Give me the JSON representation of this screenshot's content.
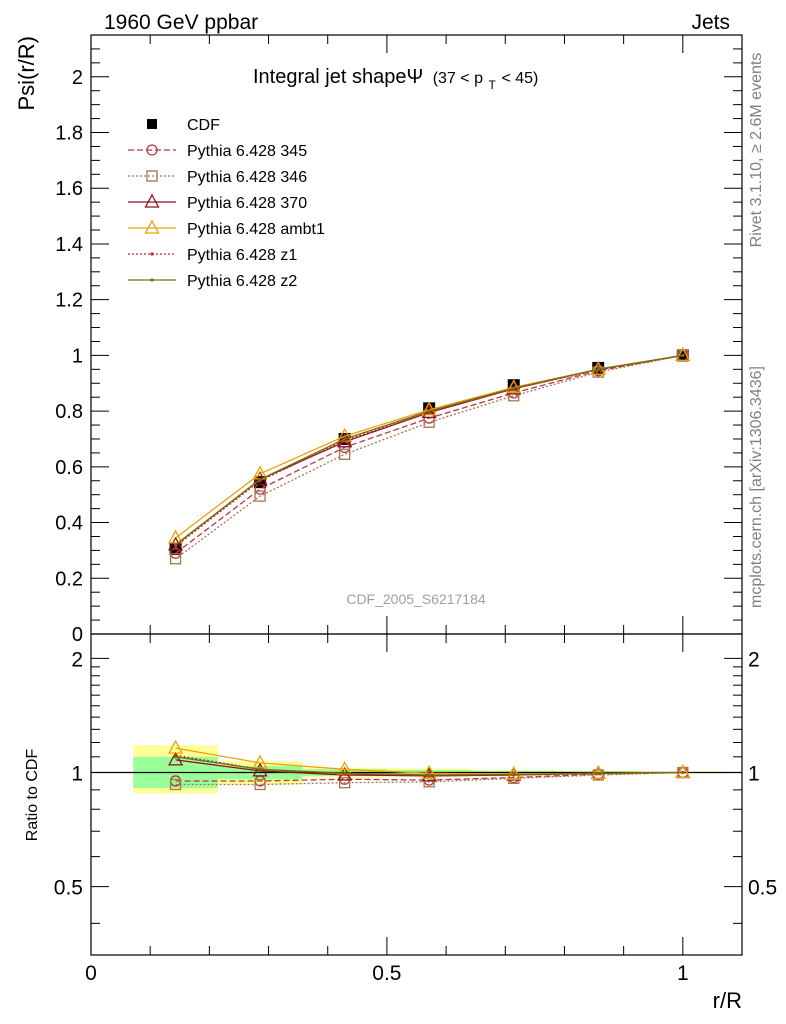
{
  "header": {
    "left": "1960 GeV ppbar",
    "right": "Jets"
  },
  "side_labels": {
    "rivet": "Rivet 3.1.10, ≥ 2.6M events",
    "mcplots": "mcplots.cern.ch [arXiv:1306.3436]"
  },
  "analysis_id": "CDF_2005_S6217184",
  "chart_data": [
    {
      "type": "line",
      "title": "Integral jet shapeΨ",
      "subtitle": "(37 < p_T < 45)",
      "subtitle_parts": {
        "open": "(37 < p",
        "sub": "T",
        "close": " < 45)"
      },
      "xlabel": "r/R",
      "ylabel": "Psi(r/R)",
      "xlim": [
        0,
        1.1
      ],
      "ylim": [
        0,
        2.15
      ],
      "yticks": [
        "0",
        "0.2",
        "0.4",
        "0.6",
        "0.8",
        "1",
        "1.2",
        "1.4",
        "1.6",
        "1.8",
        "2"
      ],
      "x": [
        0.1429,
        0.2857,
        0.4286,
        0.5714,
        0.7143,
        0.8571,
        1.0
      ],
      "series": [
        {
          "name": "CDF",
          "color": "#000000",
          "values": [
            0.305,
            0.545,
            0.7,
            0.81,
            0.893,
            0.955,
            1.0
          ]
        },
        {
          "name": "Pythia 6.428 345",
          "color": "#c0404a",
          "values": [
            0.29,
            0.52,
            0.67,
            0.775,
            0.865,
            0.945,
            1.0
          ]
        },
        {
          "name": "Pythia 6.428 346",
          "color": "#a8744a",
          "values": [
            0.27,
            0.495,
            0.645,
            0.76,
            0.855,
            0.94,
            1.0
          ]
        },
        {
          "name": "Pythia 6.428 370",
          "color": "#8a1020",
          "values": [
            0.32,
            0.555,
            0.69,
            0.795,
            0.88,
            0.95,
            1.0
          ]
        },
        {
          "name": "Pythia 6.428 ambt1",
          "color": "#f0a000",
          "values": [
            0.345,
            0.575,
            0.71,
            0.805,
            0.885,
            0.95,
            1.0
          ]
        },
        {
          "name": "Pythia 6.428 z1",
          "color": "#c0202a",
          "values": [
            0.315,
            0.55,
            0.695,
            0.795,
            0.88,
            0.948,
            1.0
          ]
        },
        {
          "name": "Pythia 6.428 z2",
          "color": "#707010",
          "values": [
            0.32,
            0.555,
            0.7,
            0.8,
            0.882,
            0.95,
            1.0
          ]
        }
      ]
    },
    {
      "type": "line",
      "ylabel": "Ratio to CDF",
      "xlabel": "r/R",
      "xlim": [
        0,
        1.1
      ],
      "ylim": [
        0.33,
        2.32
      ],
      "log_y": true,
      "xticks": [
        "0",
        "0.5",
        "1"
      ],
      "yticks": [
        "0.5",
        "1",
        "2"
      ],
      "bands": [
        {
          "x": [
            0.0714,
            0.2143
          ],
          "green": [
            0.91,
            1.1
          ],
          "yellow": [
            0.88,
            1.18
          ]
        },
        {
          "x": [
            0.2143,
            0.3571
          ],
          "green": [
            0.96,
            1.04
          ],
          "yellow": [
            0.93,
            1.07
          ]
        },
        {
          "x": [
            0.3571,
            0.5
          ],
          "green": [
            0.98,
            1.02
          ],
          "yellow": [
            0.97,
            1.03
          ]
        },
        {
          "x": [
            0.5,
            0.6429
          ],
          "green": [
            0.985,
            1.015
          ],
          "yellow": [
            0.975,
            1.025
          ]
        },
        {
          "x": [
            0.6429,
            0.7857
          ],
          "green": [
            0.99,
            1.01
          ],
          "yellow": [
            0.985,
            1.015
          ]
        },
        {
          "x": [
            0.7857,
            0.9286
          ],
          "green": [
            0.993,
            1.007
          ],
          "yellow": [
            0.99,
            1.01
          ]
        },
        {
          "x": [
            0.9286,
            1.0714
          ],
          "green": [
            0.997,
            1.003
          ],
          "yellow": [
            0.995,
            1.005
          ]
        }
      ],
      "x": [
        0.1429,
        0.2857,
        0.4286,
        0.5714,
        0.7143,
        0.8571,
        1.0
      ],
      "series": [
        {
          "name": "Pythia 6.428 345",
          "values": [
            0.95,
            0.95,
            0.96,
            0.955,
            0.97,
            0.99,
            1.0
          ]
        },
        {
          "name": "Pythia 6.428 346",
          "values": [
            0.93,
            0.93,
            0.94,
            0.945,
            0.965,
            0.985,
            1.0
          ]
        },
        {
          "name": "Pythia 6.428 370",
          "values": [
            1.08,
            1.01,
            0.985,
            0.98,
            0.985,
            0.995,
            1.0
          ]
        },
        {
          "name": "Pythia 6.428 ambt1",
          "values": [
            1.16,
            1.06,
            1.02,
            0.995,
            0.99,
            0.995,
            1.0
          ]
        },
        {
          "name": "Pythia 6.428 z1",
          "values": [
            1.11,
            1.02,
            0.99,
            0.98,
            0.985,
            0.993,
            1.0
          ]
        },
        {
          "name": "Pythia 6.428 z2",
          "values": [
            1.1,
            1.02,
            0.995,
            0.985,
            0.988,
            0.995,
            1.0
          ]
        }
      ]
    }
  ]
}
